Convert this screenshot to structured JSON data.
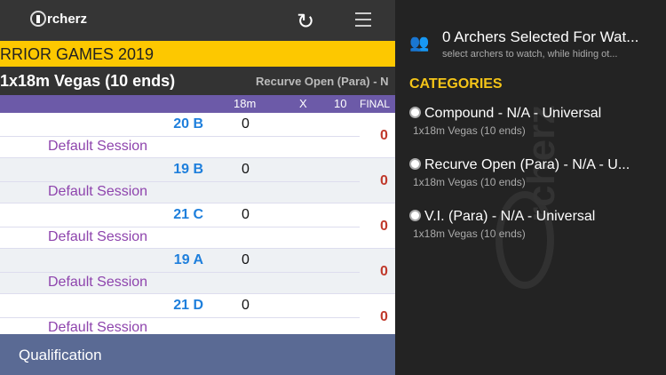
{
  "header": {
    "logo": "rcherz",
    "refresh_icon": "refresh-icon",
    "menu_icon": "hamburger-icon"
  },
  "banner": "RRIOR GAMES 2019",
  "subhead": {
    "round": "1x18m Vegas (10 ends)",
    "category": "Recurve Open (Para) - N"
  },
  "columns": {
    "c1": "18m",
    "c2": "X",
    "c3": "10",
    "c4": "FINAL"
  },
  "rows": [
    {
      "target": "20 B",
      "score": "0",
      "session": "Default Session",
      "final": "0"
    },
    {
      "target": "19 B",
      "score": "0",
      "session": "Default Session",
      "final": "0"
    },
    {
      "target": "21 C",
      "score": "0",
      "session": "Default Session",
      "final": "0"
    },
    {
      "target": "19 A",
      "score": "0",
      "session": "Default Session",
      "final": "0"
    },
    {
      "target": "21 D",
      "score": "0",
      "session": "Default Session",
      "final": "0"
    }
  ],
  "bottom": "Qualification",
  "panel": {
    "watch_title": "0 Archers Selected For Wat...",
    "watch_sub": "select archers to watch, while hiding ot...",
    "categories_heading": "CATEGORIES",
    "categories": [
      {
        "label": "Compound - N/A - Universal",
        "sub": "1x18m Vegas (10 ends)"
      },
      {
        "label": "Recurve Open (Para) - N/A - U...",
        "sub": "1x18m Vegas (10 ends)"
      },
      {
        "label": "V.I. (Para) - N/A - Universal",
        "sub": "1x18m Vegas (10 ends)"
      }
    ],
    "watermark": "rcherz"
  },
  "colors": {
    "banner": "#fdc800",
    "header": "#6c5aa8",
    "target": "#1e7fdc",
    "session": "#8e44ad",
    "final": "#c0392b",
    "accent": "#f5c518"
  }
}
